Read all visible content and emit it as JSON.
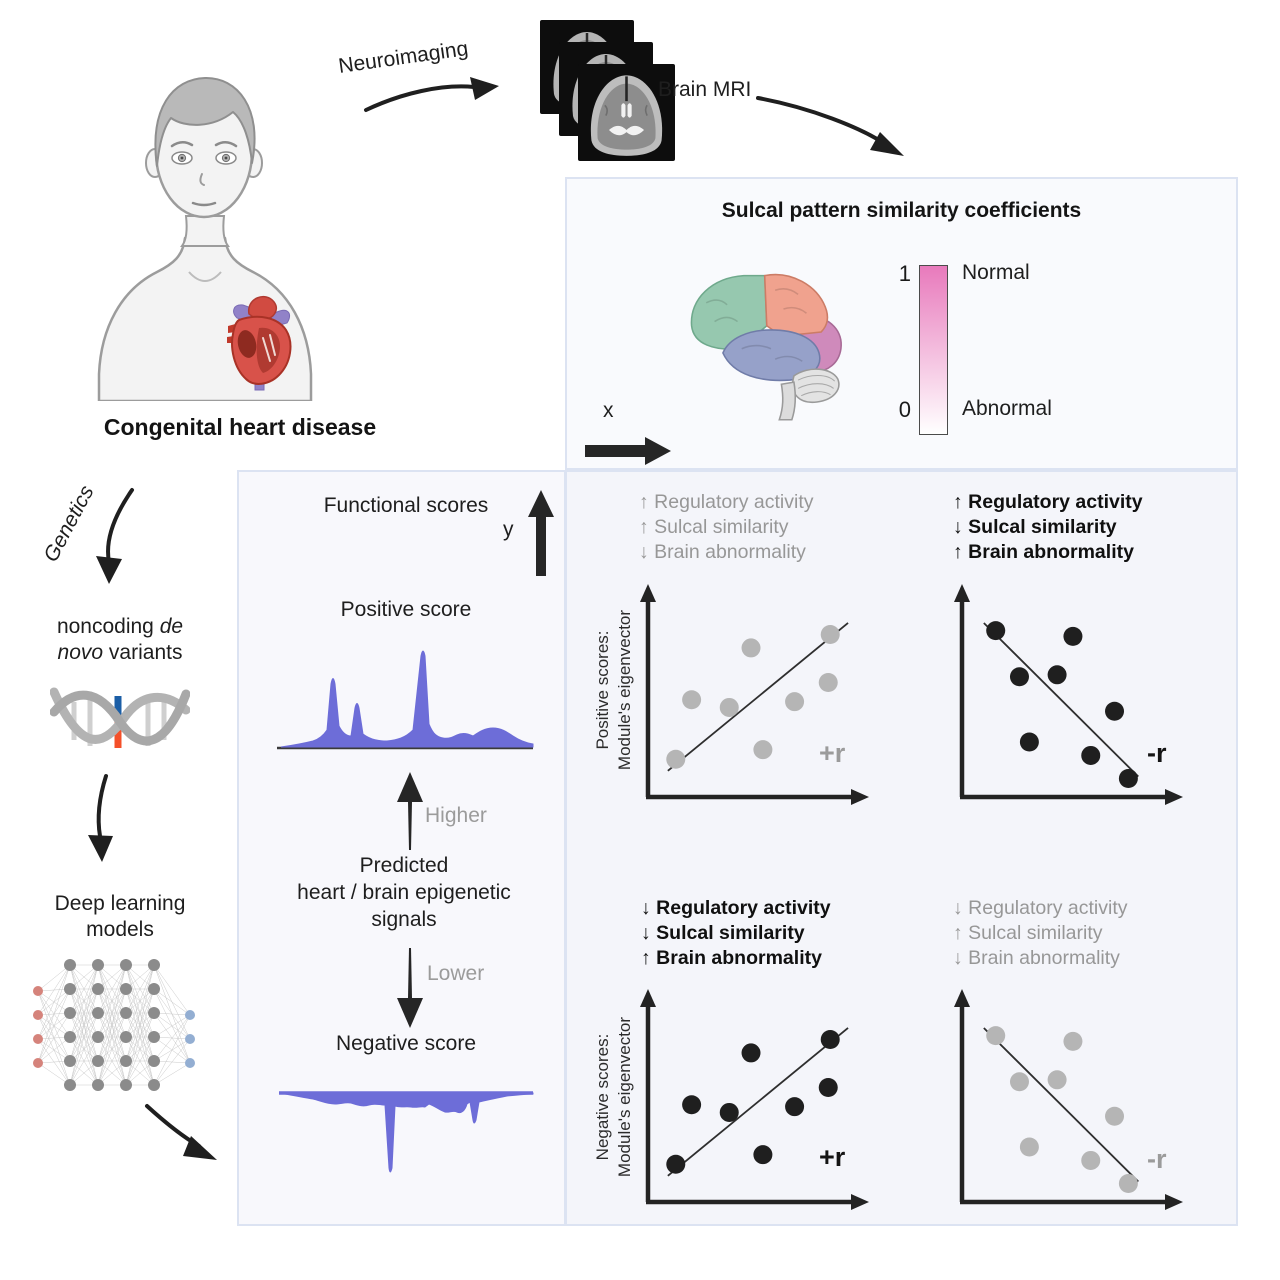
{
  "figure": {
    "patient": {
      "caption": "Congenital heart disease"
    },
    "neuroimaging": {
      "arrow_label": "Neuroimaging",
      "mri_label": "Brain MRI"
    },
    "genetics": {
      "arrow_label": "Genetics",
      "variants_pre": "noncoding",
      "variants_it1": "de",
      "variants_it2": "novo",
      "variants_post": "variants",
      "dl_line1": "Deep learning",
      "dl_line2": "models"
    },
    "sulcal_panel": {
      "title": "Sulcal pattern similarity coefficients",
      "scale": {
        "top_value": "1",
        "top_label": "Normal",
        "bottom_value": "0",
        "bottom_label": "Abnormal",
        "top_color": "#e87abc",
        "bottom_color": "#ffffff"
      },
      "x_axis_label": "x"
    },
    "functional_panel": {
      "title": "Functional scores",
      "y_axis_label": "y",
      "positive_label": "Positive score",
      "higher_label": "Higher",
      "predicted_line1": "Predicted",
      "predicted_line2": "heart / brain epigenetic",
      "predicted_line3": "signals",
      "lower_label": "Lower",
      "negative_label": "Negative score",
      "signal_color": "#6d6dd8"
    },
    "scatter_panel": {
      "quadrants": [
        {
          "name": "positive-scores-gray",
          "annotation1": "↑ Regulatory activity",
          "annotation2": "↑ Sulcal similarity",
          "annotation3": "↓ Brain abnormality",
          "emphasized": false,
          "y_label1": "Positive scores:",
          "y_label2": "Module's eigenvector",
          "r_label": "+r",
          "dot_color": "#b5b5b5",
          "trend": [
            [
              0.07,
              0.1
            ],
            [
              0.98,
              0.87
            ]
          ],
          "points": [
            [
              0.11,
              0.16
            ],
            [
              0.19,
              0.47
            ],
            [
              0.38,
              0.43
            ],
            [
              0.49,
              0.74
            ],
            [
              0.55,
              0.21
            ],
            [
              0.71,
              0.46
            ],
            [
              0.88,
              0.56
            ],
            [
              0.89,
              0.81
            ]
          ]
        },
        {
          "name": "positive-scores-black",
          "annotation1": "↑ Regulatory activity",
          "annotation2": "↓ Sulcal similarity",
          "annotation3": "↑ Brain abnormality",
          "emphasized": true,
          "r_label": "-r",
          "dot_color": "#1f1f1f",
          "trend": [
            [
              0.08,
              0.87
            ],
            [
              0.86,
              0.07
            ]
          ],
          "points": [
            [
              0.14,
              0.83
            ],
            [
              0.53,
              0.8
            ],
            [
              0.26,
              0.59
            ],
            [
              0.45,
              0.6
            ],
            [
              0.74,
              0.41
            ],
            [
              0.31,
              0.25
            ],
            [
              0.62,
              0.18
            ],
            [
              0.81,
              0.06
            ]
          ]
        },
        {
          "name": "negative-scores-black",
          "annotation1": "↓ Regulatory activity",
          "annotation2": "↓ Sulcal similarity",
          "annotation3": "↑ Brain abnormality",
          "emphasized": true,
          "y_label1": "Negative scores:",
          "y_label2": "Module's eigenvector",
          "r_label": "+r",
          "dot_color": "#1f1f1f",
          "trend": [
            [
              0.07,
              0.1
            ],
            [
              0.98,
              0.87
            ]
          ],
          "points": [
            [
              0.11,
              0.16
            ],
            [
              0.19,
              0.47
            ],
            [
              0.38,
              0.43
            ],
            [
              0.49,
              0.74
            ],
            [
              0.55,
              0.21
            ],
            [
              0.71,
              0.46
            ],
            [
              0.88,
              0.56
            ],
            [
              0.89,
              0.81
            ]
          ]
        },
        {
          "name": "negative-scores-gray",
          "annotation1": "↓ Regulatory activity",
          "annotation2": "↑ Sulcal similarity",
          "annotation3": "↓ Brain abnormality",
          "emphasized": false,
          "r_label": "-r",
          "dot_color": "#b5b5b5",
          "trend": [
            [
              0.08,
              0.87
            ],
            [
              0.86,
              0.07
            ]
          ],
          "points": [
            [
              0.14,
              0.83
            ],
            [
              0.53,
              0.8
            ],
            [
              0.26,
              0.59
            ],
            [
              0.45,
              0.6
            ],
            [
              0.74,
              0.41
            ],
            [
              0.31,
              0.25
            ],
            [
              0.62,
              0.18
            ],
            [
              0.81,
              0.06
            ]
          ]
        }
      ]
    }
  }
}
